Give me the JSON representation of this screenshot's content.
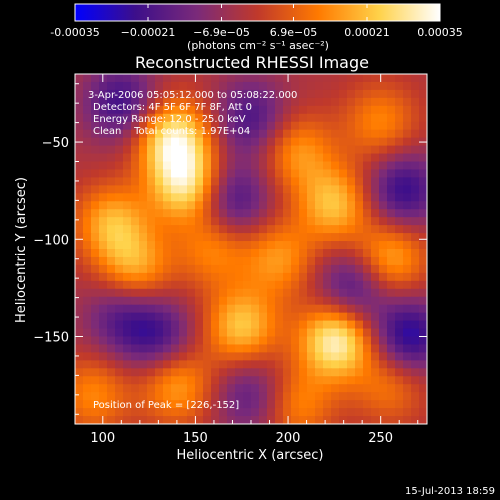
{
  "chart_data": {
    "type": "heatmap",
    "title": "Reconstructed RHESSI Image",
    "xlabel": "Heliocentric X (arcsec)",
    "ylabel": "Heliocentric Y (arcsec)",
    "xlim": [
      85,
      275
    ],
    "ylim": [
      -195,
      -15
    ],
    "xticks": [
      100,
      150,
      200,
      250
    ],
    "yticks": [
      -50,
      -100,
      -150
    ],
    "colorbar": {
      "min": -0.00035,
      "max": 0.00035,
      "tick_values": [
        -0.00035,
        -0.00021,
        -6.9e-05,
        6.9e-05,
        0.00021,
        0.00035
      ],
      "tick_labels": [
        "-0.00035",
        "−0.00021",
        "−6.9e−05",
        "6.9e−05",
        "0.00021",
        "0.00035"
      ],
      "units_label": "(photons cm⁻² s⁻¹ asec⁻²)",
      "colors": [
        "#0000ff",
        "#3d0f8a",
        "#7a2a7a",
        "#c0392b",
        "#ff7a00",
        "#ffd24a",
        "#ffffff"
      ]
    },
    "annotations": [
      "3-Apr-2006 05:05:12.000 to 05:08:22.000",
      "Detectors: 4F 5F 6F 7F 8F, Att 0",
      "Energy Range: 12.0 - 25.0 keV",
      "Clean    Total counts: 1.97E+04"
    ],
    "peak_label": "Position of Peak = [226,-152]",
    "sources": [
      {
        "x": 138,
        "y": -48,
        "v": 0.00032
      },
      {
        "x": 145,
        "y": -72,
        "v": 0.0003
      },
      {
        "x": 105,
        "y": -92,
        "v": 0.00022
      },
      {
        "x": 118,
        "y": -115,
        "v": 0.0002
      },
      {
        "x": 225,
        "y": -82,
        "v": 0.00024
      },
      {
        "x": 205,
        "y": -55,
        "v": 0.00018
      },
      {
        "x": 250,
        "y": -40,
        "v": 0.00016
      },
      {
        "x": 255,
        "y": -110,
        "v": 0.00022
      },
      {
        "x": 226,
        "y": -152,
        "v": 0.00035
      },
      {
        "x": 175,
        "y": -145,
        "v": 0.00025
      },
      {
        "x": 140,
        "y": -175,
        "v": 0.0002
      },
      {
        "x": 95,
        "y": -180,
        "v": 0.00016
      },
      {
        "x": 195,
        "y": -110,
        "v": 0.00018
      },
      {
        "x": 160,
        "y": -105,
        "v": 0.00016
      },
      {
        "x": 255,
        "y": -175,
        "v": 0.00014
      },
      {
        "x": 205,
        "y": -185,
        "v": 0.00016
      },
      {
        "x": 110,
        "y": -30,
        "v": -0.0002
      },
      {
        "x": 180,
        "y": -38,
        "v": -0.00018
      },
      {
        "x": 262,
        "y": -75,
        "v": -0.00022
      },
      {
        "x": 170,
        "y": -80,
        "v": -0.0002
      },
      {
        "x": 130,
        "y": -150,
        "v": -0.00018
      },
      {
        "x": 235,
        "y": -125,
        "v": -0.0002
      },
      {
        "x": 265,
        "y": -150,
        "v": -0.00025
      },
      {
        "x": 110,
        "y": -140,
        "v": -0.00015
      },
      {
        "x": 180,
        "y": -180,
        "v": -0.00015
      }
    ]
  },
  "footer": {
    "timestamp": "15-Jul-2013 18:59"
  }
}
